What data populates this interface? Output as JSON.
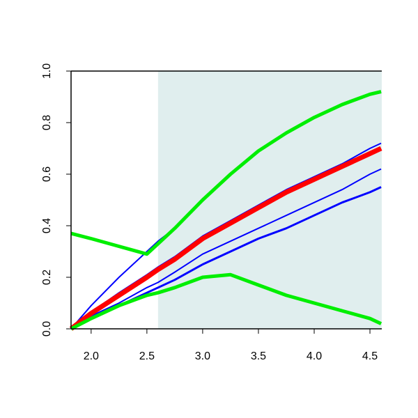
{
  "chart_data": {
    "type": "line",
    "x": [
      1.82,
      2.0,
      2.25,
      2.5,
      2.6,
      2.75,
      3.0,
      3.25,
      3.5,
      3.75,
      4.0,
      4.25,
      4.5,
      4.6
    ],
    "series": [
      {
        "color": "#0000ff",
        "line_width": 2,
        "values": [
          0,
          0.09,
          0.2,
          0.3,
          0.34,
          0.39,
          0.5,
          0.6,
          0.69,
          0.76,
          0.82,
          0.87,
          0.91,
          0.92
        ]
      },
      {
        "color": "#0000ff",
        "line_width": 2,
        "values": [
          0,
          0.065,
          0.14,
          0.21,
          0.24,
          0.28,
          0.36,
          0.42,
          0.48,
          0.54,
          0.59,
          0.64,
          0.7,
          0.72
        ]
      },
      {
        "color": "#0000ff",
        "line_width": 2,
        "values": [
          0,
          0.05,
          0.1,
          0.16,
          0.18,
          0.22,
          0.29,
          0.34,
          0.39,
          0.44,
          0.49,
          0.54,
          0.6,
          0.62
        ]
      },
      {
        "color": "#0000ff",
        "line_width": 3,
        "values": [
          0,
          0.045,
          0.09,
          0.14,
          0.16,
          0.19,
          0.25,
          0.3,
          0.35,
          0.39,
          0.44,
          0.49,
          0.53,
          0.55
        ]
      },
      {
        "color": "#ff0000",
        "line_width": 7,
        "values": [
          0,
          0.06,
          0.13,
          0.2,
          0.23,
          0.27,
          0.35,
          0.41,
          0.47,
          0.53,
          0.58,
          0.63,
          0.68,
          0.7
        ]
      },
      {
        "color": "#00ee00",
        "line_width": 5,
        "values": [
          0.37,
          0.35,
          0.32,
          0.29,
          0.33,
          0.39,
          0.5,
          0.6,
          0.69,
          0.76,
          0.82,
          0.87,
          0.91,
          0.92
        ]
      },
      {
        "color": "#00ee00",
        "line_width": 5,
        "values": [
          0,
          0.04,
          0.09,
          0.13,
          0.14,
          0.16,
          0.2,
          0.21,
          0.17,
          0.13,
          0.1,
          0.07,
          0.04,
          0.02
        ]
      }
    ],
    "shade_from": 2.6,
    "shade_color": "#e0eeee",
    "xlim": [
      1.82,
      4.606
    ],
    "ylim": [
      0,
      1
    ],
    "xticks": [
      {
        "value": 2,
        "label": "2.0"
      },
      2.5,
      {
        "value": 3,
        "label": "3.0"
      },
      3.5,
      {
        "value": 4,
        "label": "4.0"
      },
      4.5
    ],
    "yticks": [
      {
        "value": 0,
        "label": "0.0"
      },
      0.2,
      0.4,
      0.6,
      0.8,
      {
        "value": 1,
        "label": "1.0"
      }
    ]
  }
}
